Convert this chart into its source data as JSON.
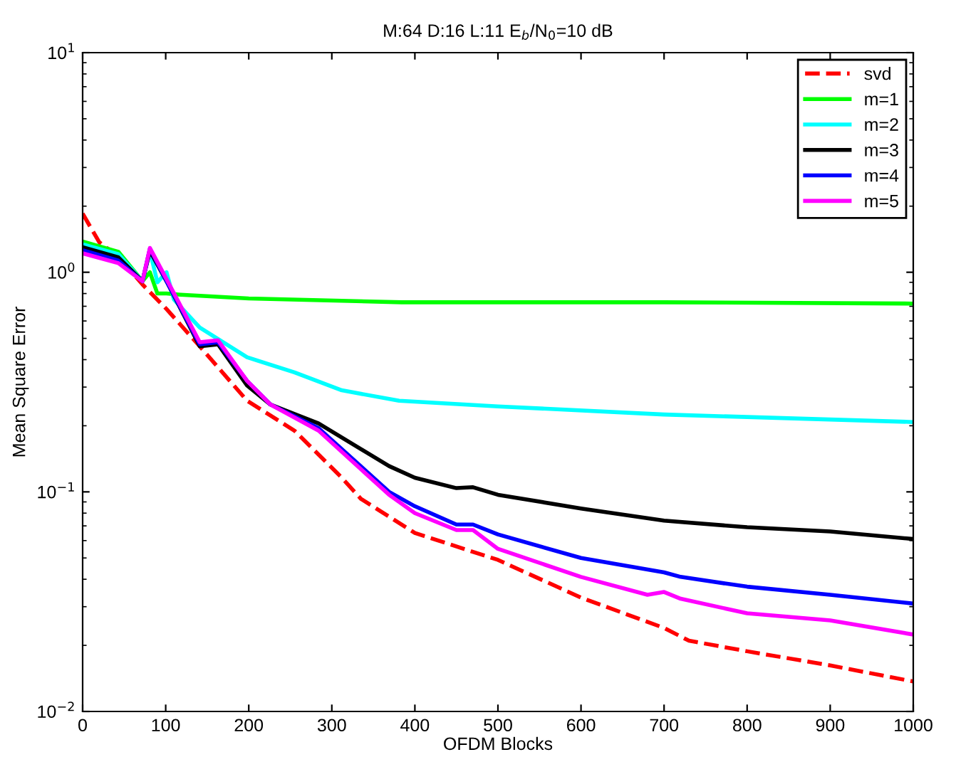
{
  "chart_data": {
    "type": "line",
    "title": "M:64 D:16 L:11 E$_{b}$/N$_{0}$=10 dB",
    "xlabel": "OFDM Blocks",
    "ylabel": "Mean Square Error",
    "log": "y",
    "xlim": [
      0,
      1000
    ],
    "xticks": [
      0,
      100,
      200,
      300,
      400,
      500,
      600,
      700,
      800,
      900,
      1000
    ],
    "ylim": [
      0.01,
      10
    ],
    "yticks": [
      {
        "value": 0.01,
        "label": "10$^{−2}$"
      },
      {
        "value": 0.1,
        "label": "10$^{−1}$"
      },
      {
        "value": 1,
        "label": "10$^{0}$"
      },
      {
        "value": 10,
        "label": "10$^{1}$"
      }
    ],
    "legend": "top right",
    "grid": false,
    "series": [
      {
        "name": "svd",
        "color": "#ff0000",
        "line_style": "dashed",
        "x": [
          0,
          20,
          43,
          72,
          101,
          141,
          198,
          255,
          312,
          335,
          400,
          500,
          600,
          700,
          730,
          800,
          900,
          1000
        ],
        "values": [
          1.85,
          1.37,
          1.18,
          0.88,
          0.68,
          0.46,
          0.26,
          0.19,
          0.116,
          0.093,
          0.065,
          0.049,
          0.033,
          0.024,
          0.021,
          0.0188,
          0.0162,
          0.0137
        ]
      },
      {
        "name": "m=1",
        "color": "#00ff00",
        "line_style": "solid",
        "x": [
          0,
          43,
          72,
          81,
          90,
          101,
          118,
          200,
          384,
          500,
          700,
          1000
        ],
        "values": [
          1.38,
          1.24,
          0.91,
          1.0,
          0.8,
          0.8,
          0.79,
          0.76,
          0.73,
          0.73,
          0.73,
          0.72
        ]
      },
      {
        "name": "m=2",
        "color": "#00ffff",
        "line_style": "solid",
        "x": [
          0,
          43,
          72,
          81,
          90,
          101,
          110,
          141,
          198,
          255,
          312,
          381,
          500,
          700,
          1000
        ],
        "values": [
          1.34,
          1.21,
          0.91,
          1.25,
          0.9,
          1.0,
          0.75,
          0.56,
          0.41,
          0.35,
          0.29,
          0.26,
          0.245,
          0.225,
          0.208
        ]
      },
      {
        "name": "m=3",
        "color": "#000000",
        "line_style": "solid",
        "x": [
          0,
          43,
          72,
          81,
          101,
          141,
          163,
          198,
          226,
          284,
          369,
          400,
          450,
          470,
          500,
          600,
          700,
          800,
          900,
          1000
        ],
        "values": [
          1.3,
          1.17,
          0.91,
          1.25,
          0.91,
          0.46,
          0.47,
          0.305,
          0.25,
          0.205,
          0.131,
          0.116,
          0.104,
          0.105,
          0.097,
          0.084,
          0.074,
          0.069,
          0.066,
          0.061
        ]
      },
      {
        "name": "m=4",
        "color": "#0000ff",
        "line_style": "solid",
        "x": [
          0,
          43,
          72,
          81,
          101,
          141,
          163,
          198,
          226,
          284,
          369,
          400,
          450,
          470,
          500,
          600,
          700,
          720,
          800,
          900,
          1000
        ],
        "values": [
          1.26,
          1.13,
          0.91,
          1.28,
          0.91,
          0.47,
          0.48,
          0.32,
          0.25,
          0.195,
          0.1,
          0.086,
          0.071,
          0.071,
          0.064,
          0.05,
          0.043,
          0.041,
          0.037,
          0.034,
          0.031
        ]
      },
      {
        "name": "m=5",
        "color": "#ff00ff",
        "line_style": "solid",
        "x": [
          0,
          43,
          72,
          81,
          101,
          141,
          163,
          198,
          226,
          284,
          369,
          400,
          450,
          470,
          500,
          600,
          680,
          700,
          720,
          800,
          900,
          1000
        ],
        "values": [
          1.22,
          1.1,
          0.91,
          1.29,
          0.93,
          0.48,
          0.49,
          0.32,
          0.25,
          0.19,
          0.097,
          0.08,
          0.067,
          0.067,
          0.055,
          0.041,
          0.034,
          0.035,
          0.0326,
          0.028,
          0.026,
          0.0224
        ]
      }
    ]
  }
}
